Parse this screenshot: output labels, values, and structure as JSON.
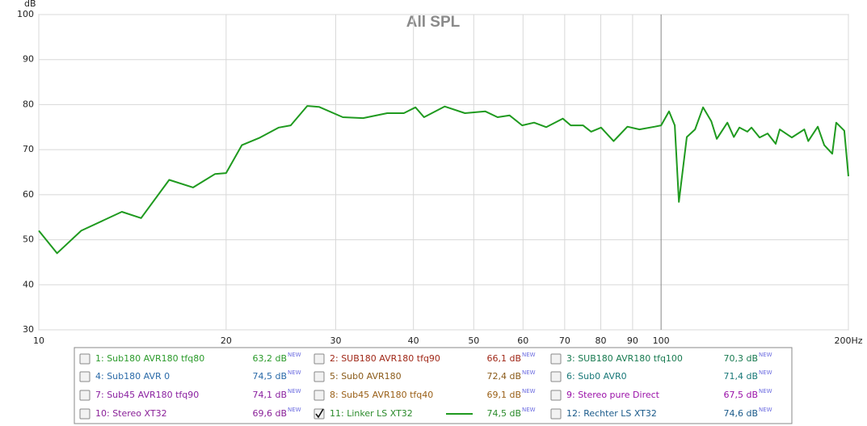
{
  "chart_data": {
    "type": "line",
    "title": "All SPL",
    "y_unit": "dB",
    "x_scale": "log",
    "grid": true,
    "xlim": [
      10,
      200
    ],
    "ylim": [
      30,
      100
    ],
    "xticks": [
      10,
      20,
      30,
      40,
      50,
      60,
      70,
      80,
      90,
      100,
      {
        "value": 200,
        "label": "200Hz"
      }
    ],
    "yticks": [
      30,
      40,
      50,
      60,
      70,
      80,
      90,
      100
    ],
    "x": [
      10,
      10.7,
      11.7,
      13.6,
      14.6,
      16.2,
      17.7,
      19.2,
      20,
      21.2,
      22.6,
      24.3,
      25.4,
      27,
      28.2,
      30.8,
      33.2,
      36.3,
      38.6,
      40.3,
      41.6,
      44.9,
      48.4,
      52.2,
      54.6,
      57.1,
      59.8,
      62.5,
      65.4,
      69.5,
      71.6,
      74.9,
      77.2,
      80.1,
      83.9,
      88.3,
      92.3,
      97.7,
      100,
      103,
      105.2,
      106.8,
      110,
      113.4,
      116.8,
      120.4,
      122.9,
      127.8,
      130.9,
      133.6,
      137.6,
      139.7,
      144,
      148.3,
      152.8,
      155.1,
      162.2,
      169.9,
      172.4,
      178.6,
      182.9,
      188.4,
      191.2,
      197,
      200
    ],
    "series": [
      {
        "color": "#1f9a1f",
        "values": [
          52,
          47,
          52,
          56.2,
          54.8,
          63.3,
          61.6,
          64.6,
          64.8,
          71,
          72.6,
          74.9,
          75.4,
          79.7,
          79.5,
          77.2,
          77,
          78.1,
          78.1,
          79.4,
          77.2,
          79.6,
          78.1,
          78.5,
          77.2,
          77.6,
          75.4,
          76,
          75,
          76.9,
          75.4,
          75.4,
          74,
          74.9,
          71.9,
          75.1,
          74.5,
          75.1,
          75.4,
          78.5,
          75.4,
          58.4,
          72.8,
          74.5,
          79.4,
          76.3,
          72.4,
          76,
          72.8,
          74.9,
          74,
          74.9,
          72.7,
          73.6,
          71.3,
          74.5,
          72.7,
          74.5,
          71.9,
          75.1,
          71,
          69.1,
          76,
          74.2,
          64.1
        ]
      }
    ],
    "legend_badge": "NEW",
    "legend_entries": [
      {
        "name": "1: Sub180 AVR180 tfq80",
        "readout": "63,2 dB",
        "color": "#2a9a2a",
        "checked": false
      },
      {
        "name": "2: SUB180 AVR180 tfq90",
        "readout": "66,1 dB",
        "color": "#a02818",
        "checked": false
      },
      {
        "name": "3: SUB180 AVR180 tfq100",
        "readout": "70,3 dB",
        "color": "#187a50",
        "checked": false
      },
      {
        "name": "4: Sub180 AVR 0",
        "readout": "74,5 dB",
        "color": "#2a6aa8",
        "checked": false
      },
      {
        "name": "5: Sub0 AVR180",
        "readout": "72,4 dB",
        "color": "#8a5a18",
        "checked": false
      },
      {
        "name": "6: Sub0 AVR0",
        "readout": "71,4 dB",
        "color": "#187878",
        "checked": false
      },
      {
        "name": "7: Sub45 AVR180 tfq90",
        "readout": "74,1 dB",
        "color": "#8a20a0",
        "checked": false
      },
      {
        "name": "8: Sub45 AVR180 tfq40",
        "readout": "69,1 dB",
        "color": "#9a6018",
        "checked": false
      },
      {
        "name": "9: Stereo pure Direct",
        "readout": "67,5 dB",
        "color": "#9a10a8",
        "checked": false
      },
      {
        "name": "10: Stereo XT32",
        "readout": "69,6 dB",
        "color": "#8a2098",
        "checked": false
      },
      {
        "name": "11: Linker LS XT32",
        "readout": "74,5 dB",
        "color": "#2a8a2a",
        "checked": true
      },
      {
        "name": "12: Rechter LS XT32",
        "readout": "74,6 dB",
        "color": "#1a5a8a",
        "checked": false
      }
    ]
  }
}
